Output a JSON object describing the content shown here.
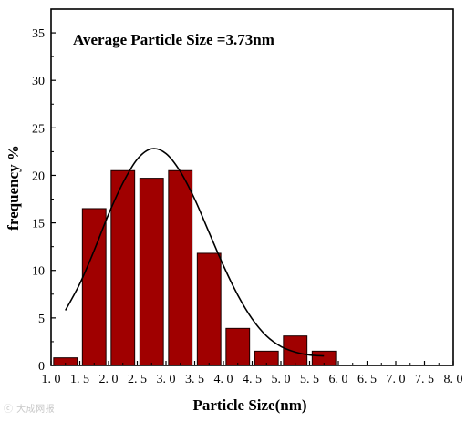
{
  "watermark": "ⓒ 大成网报",
  "colors": {
    "bar_fill": "#a00000",
    "bar_stroke": "#1a0000",
    "curve": "#000000",
    "axes": "#000000",
    "text": "#000000"
  },
  "chart_data": {
    "type": "bar",
    "title": "",
    "annotation": "Average Particle Size =3.73nm",
    "xlabel": "Particle Size(nm)",
    "ylabel": "frequency %",
    "xlim": [
      1.0,
      8.0
    ],
    "ylim": [
      0,
      37.5
    ],
    "x_ticks": [
      "1. 0",
      "1. 5",
      "2. 0",
      "2. 5",
      "3. 0",
      "3. 5",
      "4. 0",
      "4. 5",
      "5. 0",
      "5. 5",
      "6. 0",
      "6. 5",
      "7. 0",
      "7. 5",
      "8. 0"
    ],
    "y_ticks": [
      "0",
      "5",
      "10",
      "15",
      "20",
      "25",
      "30",
      "35"
    ],
    "bars": [
      {
        "x": 1.25,
        "value": 0.8
      },
      {
        "x": 1.75,
        "value": 16.5
      },
      {
        "x": 2.25,
        "value": 20.5
      },
      {
        "x": 2.75,
        "value": 19.7
      },
      {
        "x": 3.25,
        "value": 20.5
      },
      {
        "x": 3.75,
        "value": 11.8
      },
      {
        "x": 4.25,
        "value": 3.9
      },
      {
        "x": 4.75,
        "value": 1.5
      },
      {
        "x": 5.25,
        "value": 3.1
      },
      {
        "x": 5.75,
        "value": 1.5
      }
    ],
    "fit_curve": {
      "type": "gaussian",
      "points": [
        [
          1.25,
          5.8
        ],
        [
          1.5,
          8.6
        ],
        [
          1.75,
          12.1
        ],
        [
          2.0,
          15.9
        ],
        [
          2.25,
          19.2
        ],
        [
          2.5,
          21.7
        ],
        [
          2.75,
          22.8
        ],
        [
          3.0,
          22.3
        ],
        [
          3.25,
          20.4
        ],
        [
          3.5,
          17.5
        ],
        [
          3.75,
          14.0
        ],
        [
          4.0,
          10.5
        ],
        [
          4.25,
          7.4
        ],
        [
          4.5,
          4.9
        ],
        [
          4.75,
          3.1
        ],
        [
          5.0,
          2.0
        ],
        [
          5.25,
          1.4
        ],
        [
          5.5,
          1.1
        ],
        [
          5.75,
          1.0
        ]
      ]
    },
    "grid": false,
    "legend": "none"
  }
}
